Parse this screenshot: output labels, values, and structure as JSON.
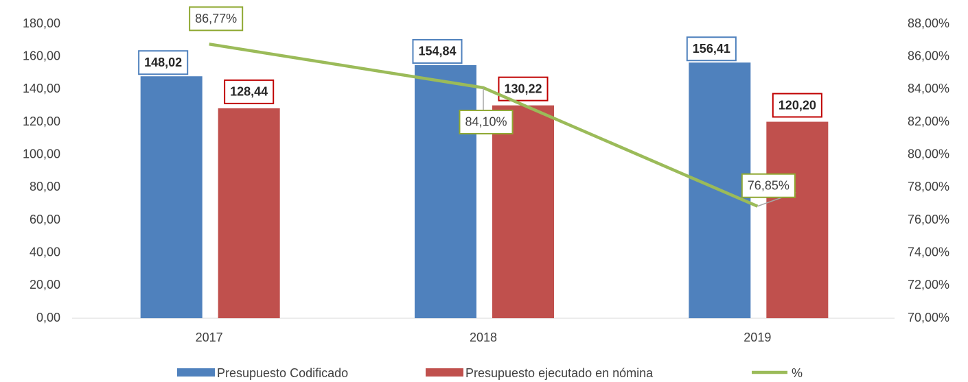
{
  "chart_data": {
    "type": "bar_line",
    "categories": [
      "2017",
      "2018",
      "2019"
    ],
    "series": [
      {
        "name": "Presupuesto Codificado",
        "type": "bar",
        "axis": "y",
        "color": "#4f81bd",
        "label_border": "#4f81bd",
        "values": [
          148.02,
          154.84,
          156.41
        ],
        "value_labels": [
          "148,02",
          "154,84",
          "156,41"
        ]
      },
      {
        "name": "Presupuesto ejecutado en nómina",
        "type": "bar",
        "axis": "y",
        "color": "#c0504d",
        "label_border": "#c00000",
        "values": [
          128.44,
          130.22,
          120.2
        ],
        "value_labels": [
          "128,44",
          "130,22",
          "120,20"
        ]
      },
      {
        "name": "%",
        "type": "line",
        "axis": "y2",
        "color": "#9bbb59",
        "label_border": "#8fa832",
        "values": [
          86.77,
          84.1,
          76.85
        ],
        "value_labels": [
          "86,77%",
          "84,10%",
          "76,85%"
        ]
      }
    ],
    "ylim": [
      0,
      180
    ],
    "yticks": [
      {
        "value": 0,
        "label": "0,00"
      },
      {
        "value": 20,
        "label": "20,00"
      },
      {
        "value": 40,
        "label": "40,00"
      },
      {
        "value": 60,
        "label": "60,00"
      },
      {
        "value": 80,
        "label": "80,00"
      },
      {
        "value": 100,
        "label": "100,00"
      },
      {
        "value": 120,
        "label": "120,00"
      },
      {
        "value": 140,
        "label": "140,00"
      },
      {
        "value": 160,
        "label": "160,00"
      },
      {
        "value": 180,
        "label": "180,00"
      }
    ],
    "y2lim": [
      70,
      88
    ],
    "y2ticks": [
      {
        "value": 70,
        "label": "70,00%"
      },
      {
        "value": 72,
        "label": "72,00%"
      },
      {
        "value": 74,
        "label": "74,00%"
      },
      {
        "value": 76,
        "label": "76,00%"
      },
      {
        "value": 78,
        "label": "78,00%"
      },
      {
        "value": 80,
        "label": "80,00%"
      },
      {
        "value": 82,
        "label": "82,00%"
      },
      {
        "value": 84,
        "label": "84,00%"
      },
      {
        "value": 86,
        "label": "86,00%"
      },
      {
        "value": 88,
        "label": "88,00%"
      }
    ],
    "grid": false,
    "legend": "bottom"
  }
}
